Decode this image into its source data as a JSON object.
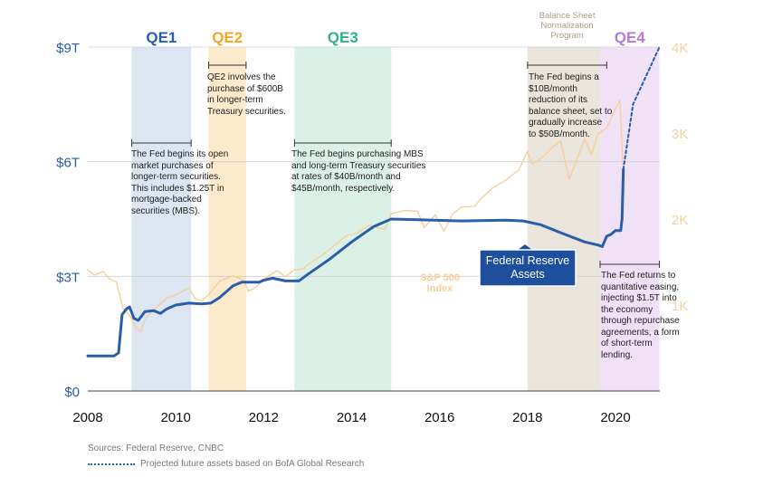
{
  "chart_data": {
    "type": "line",
    "x_ticks": [
      "2008",
      "2010",
      "2012",
      "2014",
      "2016",
      "2018",
      "2020"
    ],
    "y_left_ticks": [
      "$0",
      "$3T",
      "$6T",
      "$9T"
    ],
    "y_left_values": [
      0,
      3,
      6,
      9
    ],
    "y_right_ticks": [
      "1K",
      "2K",
      "3K",
      "4K"
    ],
    "y_right_values": [
      1000,
      2000,
      3000,
      4000
    ],
    "ylim_left": [
      0,
      9
    ],
    "ylim_right": [
      0,
      4000
    ],
    "xlim": [
      2008,
      2021.1
    ],
    "bands": [
      {
        "name": "QE1",
        "label": "QE1",
        "start": 2009.0,
        "end": 2010.35,
        "color": "#2a5ea8",
        "fill": "#d6e0ef"
      },
      {
        "name": "QE2",
        "label": "QE2",
        "start": 2010.75,
        "end": 2011.6,
        "color": "#f5a623",
        "fill": "#fde6c4"
      },
      {
        "name": "QE3",
        "label": "QE3",
        "start": 2012.7,
        "end": 2014.9,
        "color": "#2cb38a",
        "fill": "#d5efe4"
      },
      {
        "name": "BSN",
        "label": "",
        "start": 2018.0,
        "end": 2019.65,
        "color": "#b8ad95",
        "fill": "#e6e0d6"
      },
      {
        "name": "QE4",
        "label": "QE4",
        "start": 2019.65,
        "end": 2021.0,
        "color": "#b57ad6",
        "fill": "#efdcf6"
      }
    ],
    "balance_sheet_label": [
      "Balance Sheet",
      "Normalization",
      "Program"
    ],
    "series": [
      {
        "name": "Federal Reserve Assets",
        "label": "Federal Reserve Assets",
        "axis": "left",
        "color": "#2a5ea8",
        "points": [
          [
            2008.0,
            0.92
          ],
          [
            2008.6,
            0.92
          ],
          [
            2008.7,
            1.0
          ],
          [
            2008.78,
            2.0
          ],
          [
            2008.88,
            2.15
          ],
          [
            2008.95,
            2.2
          ],
          [
            2009.05,
            1.9
          ],
          [
            2009.15,
            1.85
          ],
          [
            2009.3,
            2.08
          ],
          [
            2009.5,
            2.1
          ],
          [
            2009.65,
            2.03
          ],
          [
            2009.8,
            2.15
          ],
          [
            2010.0,
            2.25
          ],
          [
            2010.3,
            2.3
          ],
          [
            2010.6,
            2.28
          ],
          [
            2010.8,
            2.3
          ],
          [
            2011.0,
            2.45
          ],
          [
            2011.3,
            2.75
          ],
          [
            2011.5,
            2.85
          ],
          [
            2011.9,
            2.85
          ],
          [
            2012.0,
            2.9
          ],
          [
            2012.2,
            2.95
          ],
          [
            2012.5,
            2.88
          ],
          [
            2012.8,
            2.88
          ],
          [
            2013.0,
            3.05
          ],
          [
            2013.5,
            3.45
          ],
          [
            2014.0,
            3.9
          ],
          [
            2014.5,
            4.3
          ],
          [
            2014.9,
            4.5
          ],
          [
            2015.5,
            4.48
          ],
          [
            2016.5,
            4.45
          ],
          [
            2017.5,
            4.47
          ],
          [
            2017.9,
            4.45
          ],
          [
            2018.3,
            4.35
          ],
          [
            2018.8,
            4.12
          ],
          [
            2019.3,
            3.9
          ],
          [
            2019.6,
            3.82
          ],
          [
            2019.7,
            3.78
          ],
          [
            2019.8,
            4.05
          ],
          [
            2019.9,
            4.1
          ],
          [
            2020.0,
            4.2
          ],
          [
            2020.12,
            4.2
          ],
          [
            2020.15,
            4.5
          ],
          [
            2020.18,
            5.8
          ]
        ]
      },
      {
        "name": "Projected future assets",
        "label": "Projected future assets based on BofA Global Research",
        "axis": "left",
        "color": "#2a5ea8",
        "dashed": true,
        "points": [
          [
            2020.18,
            5.8
          ],
          [
            2020.4,
            7.5
          ],
          [
            2021.0,
            9.0
          ]
        ]
      },
      {
        "name": "S&P 500 Index",
        "label": "S&P 500 Index",
        "axis": "right",
        "color": "#f6cf9a",
        "points": [
          [
            2008.0,
            1410
          ],
          [
            2008.15,
            1350
          ],
          [
            2008.35,
            1390
          ],
          [
            2008.5,
            1300
          ],
          [
            2008.65,
            1270
          ],
          [
            2008.8,
            960
          ],
          [
            2008.95,
            880
          ],
          [
            2009.1,
            740
          ],
          [
            2009.2,
            690
          ],
          [
            2009.3,
            830
          ],
          [
            2009.45,
            920
          ],
          [
            2009.6,
            990
          ],
          [
            2009.8,
            1080
          ],
          [
            2010.0,
            1120
          ],
          [
            2010.3,
            1200
          ],
          [
            2010.45,
            1070
          ],
          [
            2010.6,
            1050
          ],
          [
            2010.8,
            1150
          ],
          [
            2011.0,
            1280
          ],
          [
            2011.3,
            1340
          ],
          [
            2011.55,
            1290
          ],
          [
            2011.65,
            1160
          ],
          [
            2011.8,
            1200
          ],
          [
            2012.0,
            1300
          ],
          [
            2012.3,
            1400
          ],
          [
            2012.5,
            1330
          ],
          [
            2012.7,
            1410
          ],
          [
            2012.9,
            1420
          ],
          [
            2013.0,
            1470
          ],
          [
            2013.3,
            1570
          ],
          [
            2013.6,
            1690
          ],
          [
            2013.9,
            1810
          ],
          [
            2014.1,
            1830
          ],
          [
            2014.4,
            1930
          ],
          [
            2014.75,
            1880
          ],
          [
            2014.9,
            2060
          ],
          [
            2015.2,
            2100
          ],
          [
            2015.5,
            2090
          ],
          [
            2015.65,
            1900
          ],
          [
            2015.9,
            2050
          ],
          [
            2016.1,
            1860
          ],
          [
            2016.3,
            2060
          ],
          [
            2016.5,
            2140
          ],
          [
            2016.8,
            2150
          ],
          [
            2016.95,
            2240
          ],
          [
            2017.2,
            2360
          ],
          [
            2017.5,
            2450
          ],
          [
            2017.8,
            2570
          ],
          [
            2018.0,
            2790
          ],
          [
            2018.1,
            2640
          ],
          [
            2018.3,
            2700
          ],
          [
            2018.6,
            2850
          ],
          [
            2018.75,
            2910
          ],
          [
            2018.95,
            2460
          ],
          [
            2019.05,
            2600
          ],
          [
            2019.3,
            2930
          ],
          [
            2019.45,
            2750
          ],
          [
            2019.6,
            2990
          ],
          [
            2019.8,
            3060
          ],
          [
            2019.95,
            3230
          ],
          [
            2020.1,
            3380
          ],
          [
            2020.2,
            2300
          ]
        ]
      }
    ],
    "legend_labels": {
      "sp500": [
        "S&P 500",
        "Index"
      ],
      "fed": [
        "Federal Reserve",
        "Assets"
      ]
    },
    "annotations": {
      "qe1": {
        "range": [
          2009.0,
          2010.35
        ],
        "text": [
          "The Fed begins its open",
          "market purchases of",
          "longer-term securities.",
          "This includes $1.25T in",
          "mortgage-backed",
          "securities (MBS)."
        ]
      },
      "qe2": {
        "range": [
          2010.75,
          2011.6
        ],
        "text": [
          "QE2 involves the",
          "purchase of $600B",
          "in longer-term",
          "Treasury securities."
        ]
      },
      "qe3": {
        "range": [
          2012.7,
          2014.9
        ],
        "text": [
          "The Fed begins purchasing MBS",
          "and long-term Treasury securities",
          "at rates of $40B/month and",
          "$45B/month, respectively."
        ]
      },
      "bsn": {
        "range": [
          2018.0,
          2019.8
        ],
        "text": [
          "The Fed begins a",
          "$10B/month",
          "reduction of its",
          "balance sheet, set to",
          "gradually increase",
          "to $50B/month."
        ]
      },
      "qe4": {
        "range": [
          2019.65,
          2021.0
        ],
        "text": [
          "The Fed returns to",
          "quantitative easing,",
          "injecting $1.5T into",
          "the economy",
          "through repurchase",
          "agreements, a form",
          "of short-term",
          "lending."
        ]
      }
    }
  },
  "footer": {
    "sources": "Sources: Federal Reserve, CNBC",
    "projection_note": "Projected future assets based on BofA Global Research"
  }
}
